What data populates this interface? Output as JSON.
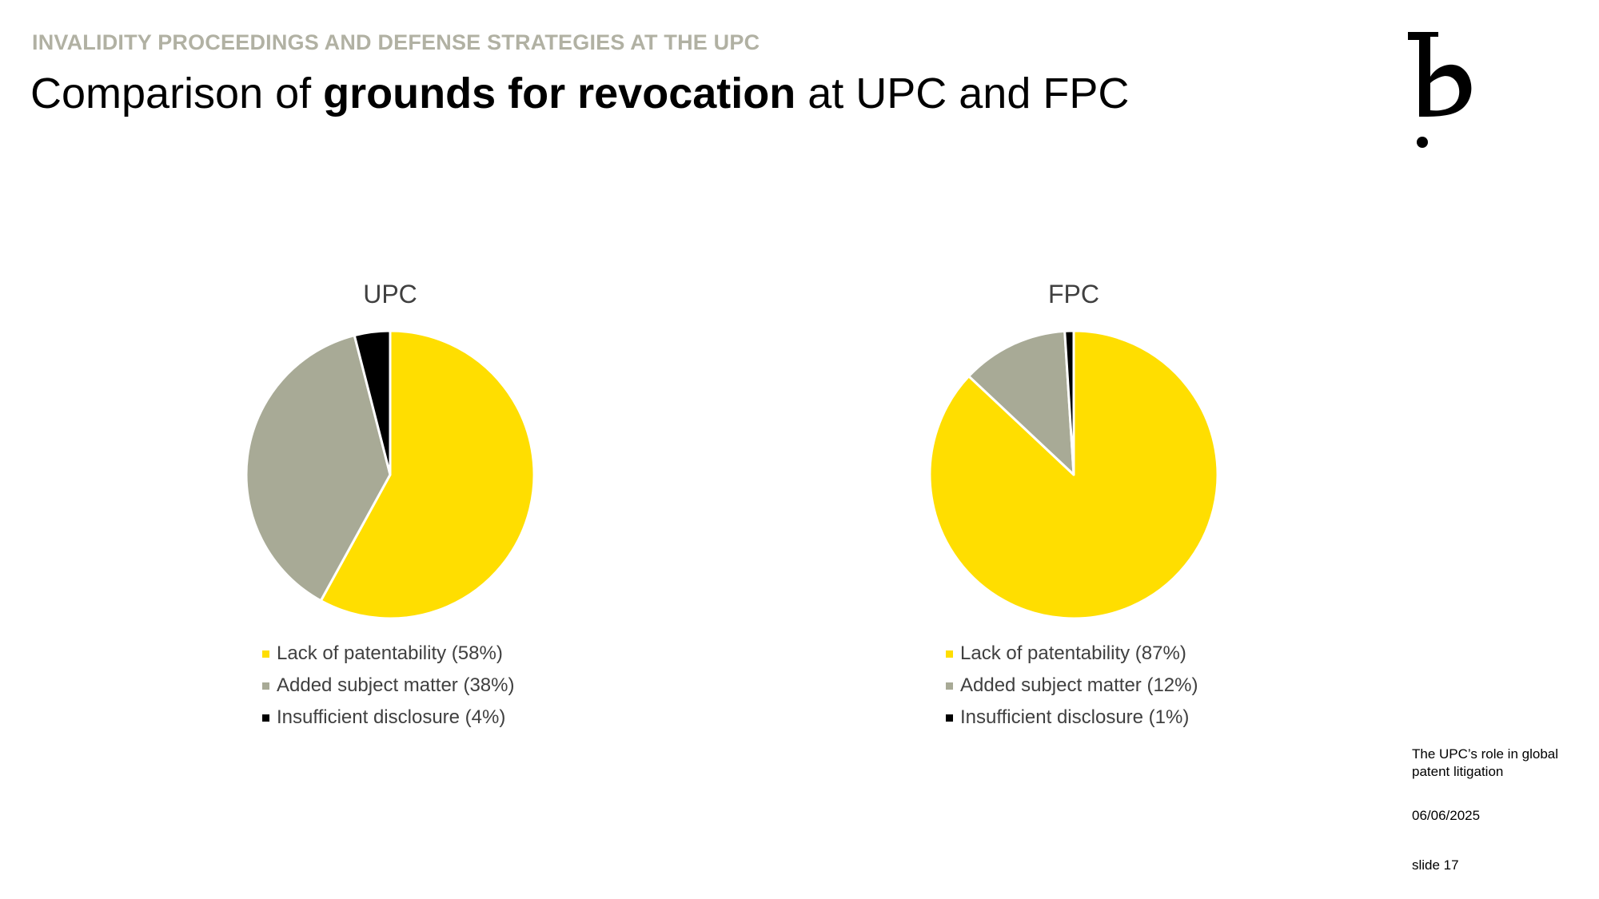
{
  "header": {
    "eyebrow": "INVALIDITY PROCEEDINGS AND DEFENSE STRATEGIES AT THE UPC",
    "title_prefix": "Comparison of ",
    "title_bold": "grounds for revocation",
    "title_suffix": " at UPC and FPC"
  },
  "colors": {
    "lack": "#FFDE00",
    "added": "#A8AA96",
    "insufficient": "#000000",
    "eyebrow": "#B1B1A3"
  },
  "chart_data": [
    {
      "type": "pie",
      "title": "UPC",
      "categories": [
        "Lack of patentability",
        "Added subject matter",
        "Insufficient disclosure"
      ],
      "values": [
        58,
        38,
        4
      ],
      "legend_labels": [
        "Lack of patentability (58%)",
        "Added subject matter (38%)",
        "Insufficient disclosure (4%)"
      ],
      "legend": "bottom"
    },
    {
      "type": "pie",
      "title": "FPC",
      "categories": [
        "Lack of patentability",
        "Added subject matter",
        "Insufficient disclosure"
      ],
      "values": [
        87,
        12,
        1
      ],
      "legend_labels": [
        "Lack of patentability (87%)",
        "Added subject matter (12%)",
        "Insufficient disclosure (1%)"
      ],
      "legend": "bottom"
    }
  ],
  "footer": {
    "note": "The UPC’s role in global patent litigation",
    "date": "06/06/2025",
    "slide": "slide 17"
  }
}
